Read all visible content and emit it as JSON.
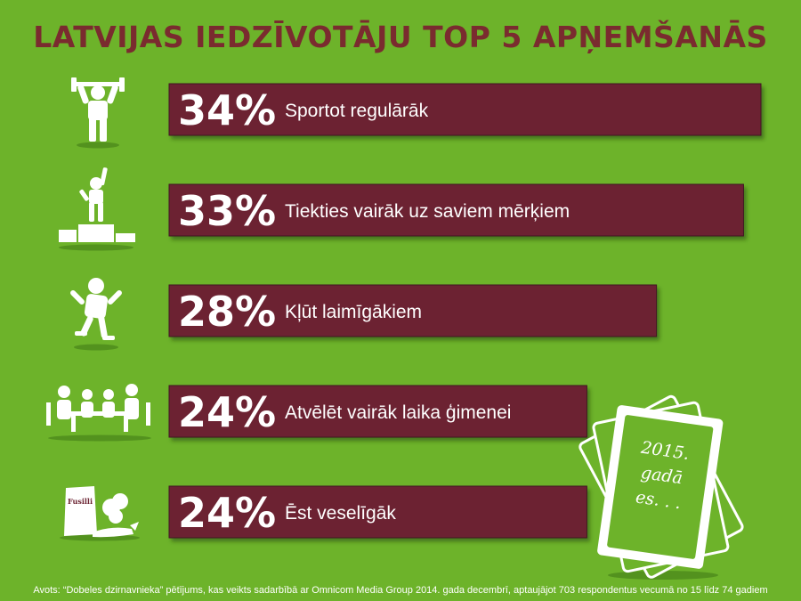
{
  "title": "LATVIJAS IEDZĪVOTĀJU TOP 5 APŅEMŠANĀS",
  "colors": {
    "background": "#6db32a",
    "bar": "#6c2433",
    "bar_shadow": "#3f1520",
    "title": "#7a2b2f",
    "text": "#ffffff",
    "icon": "#ffffff"
  },
  "chart_data": {
    "type": "bar",
    "orientation": "horizontal",
    "unit": "%",
    "categories": [
      "Sportot regulārāk",
      "Tiekties vairāk uz saviem mērķiem",
      "Kļūt laimīgākiem",
      "Atvēlēt vairāk laika ģimenei",
      "Ēst veselīgāk"
    ],
    "values": [
      34,
      33,
      28,
      24,
      24
    ],
    "value_labels": [
      "34%",
      "33%",
      "28%",
      "24%",
      "24%"
    ],
    "icons": [
      "dumbbell-lifter-icon",
      "podium-winner-icon",
      "jumping-person-icon",
      "family-table-icon",
      "groceries-icon"
    ]
  },
  "decor": {
    "package_label": "Fusilli",
    "note_lines": [
      "2015.",
      "gadā",
      "es. . ."
    ]
  },
  "source": "Avots: “Dobeles dzirnavnieka” pētījums, kas veikts sadarbībā ar Omnicom Media Group 2014. gada decembrī, aptaujājot 703 respondentus vecumā no 15 līdz 74 gadiem"
}
